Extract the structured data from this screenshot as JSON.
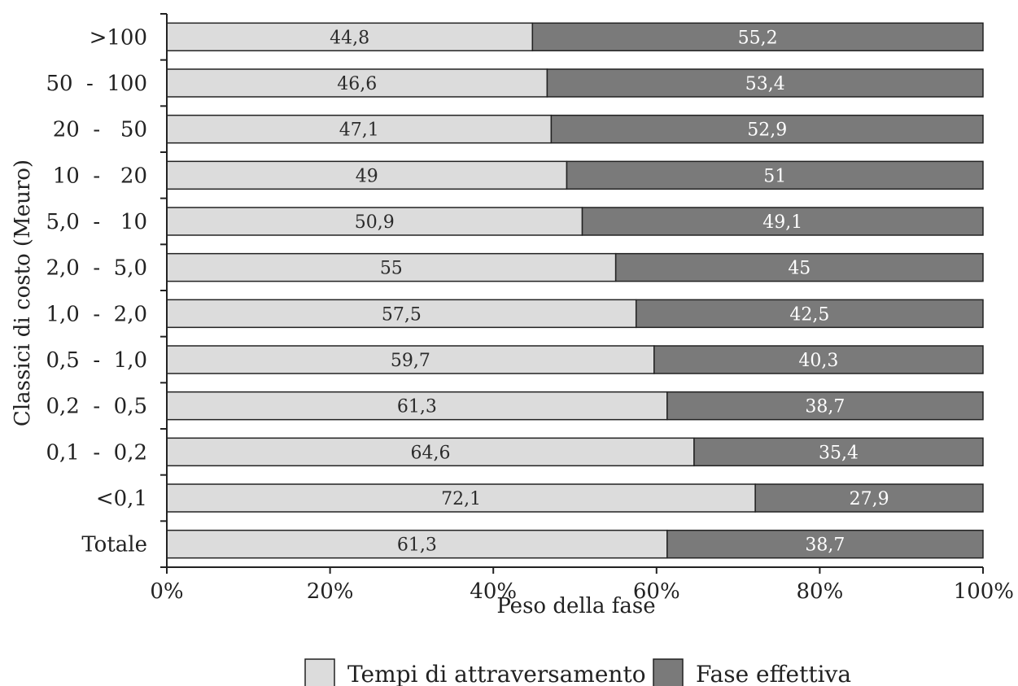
{
  "chart_data": {
    "type": "bar",
    "orientation": "horizontal",
    "stacked": true,
    "categories": [
      ">100",
      "50  -  100",
      "20  -   50",
      "10  -   20",
      "5,0  -   10",
      "2,0  -  5,0",
      "1,0  -  2,0",
      "0,5  -  1,0",
      "0,2  -  0,5",
      "0,1  -  0,2",
      "<0,1",
      "Totale"
    ],
    "series": [
      {
        "name": "Tempi di attraversamento",
        "color": "#dcdcdc",
        "values": [
          44.8,
          46.6,
          47.1,
          49,
          50.9,
          55,
          57.5,
          59.7,
          61.3,
          64.6,
          72.1,
          61.3
        ],
        "labels": [
          "44,8",
          "46,6",
          "47,1",
          "49",
          "50,9",
          "55",
          "57,5",
          "59,7",
          "61,3",
          "64,6",
          "72,1",
          "61,3"
        ]
      },
      {
        "name": "Fase effettiva",
        "color": "#7a7a7a",
        "values": [
          55.2,
          53.4,
          52.9,
          51,
          49.1,
          45,
          42.5,
          40.3,
          38.7,
          35.4,
          27.9,
          38.7
        ],
        "labels": [
          "55,2",
          "53,4",
          "52,9",
          "51",
          "49,1",
          "45",
          "42,5",
          "40,3",
          "38,7",
          "35,4",
          "27,9",
          "38,7"
        ]
      }
    ],
    "xlabel": "Peso della fase",
    "ylabel": "Classici di costo (Meuro)",
    "xlim": [
      0,
      100
    ],
    "xticks": [
      "0%",
      "20%",
      "40%",
      "60%",
      "80%",
      "100%"
    ],
    "grid": false,
    "legend_position": "bottom"
  }
}
